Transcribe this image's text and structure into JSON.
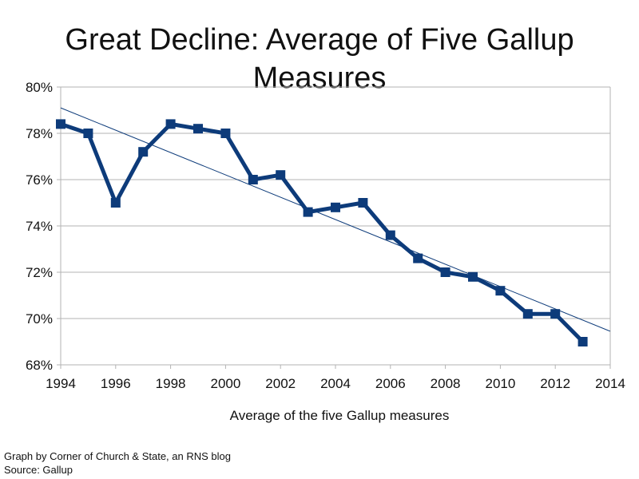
{
  "chart_data": {
    "type": "line",
    "title": "Great Decline: Average of Five Gallup Measures",
    "xlabel": "Average of the five Gallup measures",
    "ylabel": "",
    "xlim": [
      1994,
      2014
    ],
    "ylim": [
      68,
      80
    ],
    "x_ticks": [
      "1994",
      "1996",
      "1998",
      "2000",
      "2002",
      "2004",
      "2006",
      "2008",
      "2010",
      "2012",
      "2014"
    ],
    "y_ticks": [
      "68%",
      "70%",
      "72%",
      "74%",
      "76%",
      "78%",
      "80%"
    ],
    "grid": "horizontal",
    "legend": "none",
    "series": [
      {
        "x": [
          1994,
          1995,
          1996,
          1997,
          1998,
          1999,
          2000,
          2001,
          2002,
          2003,
          2004,
          2005,
          2006,
          2007,
          2008,
          2009,
          2010,
          2011,
          2012,
          2013
        ],
        "values": [
          78.4,
          78.0,
          75.0,
          77.2,
          78.4,
          78.2,
          78.0,
          76.0,
          76.2,
          74.6,
          74.8,
          75.0,
          73.6,
          72.6,
          72.0,
          71.8,
          71.2,
          70.2,
          70.2,
          69.0
        ],
        "color": "#0d3b7a",
        "marker": "square"
      }
    ],
    "trendline": {
      "x": [
        1994,
        2014
      ],
      "values": [
        79.1,
        69.45
      ],
      "color": "#0d3b7a"
    }
  },
  "credits": {
    "line1": "Graph by Corner of Church & State, an RNS blog",
    "line2": "Source: Gallup"
  }
}
